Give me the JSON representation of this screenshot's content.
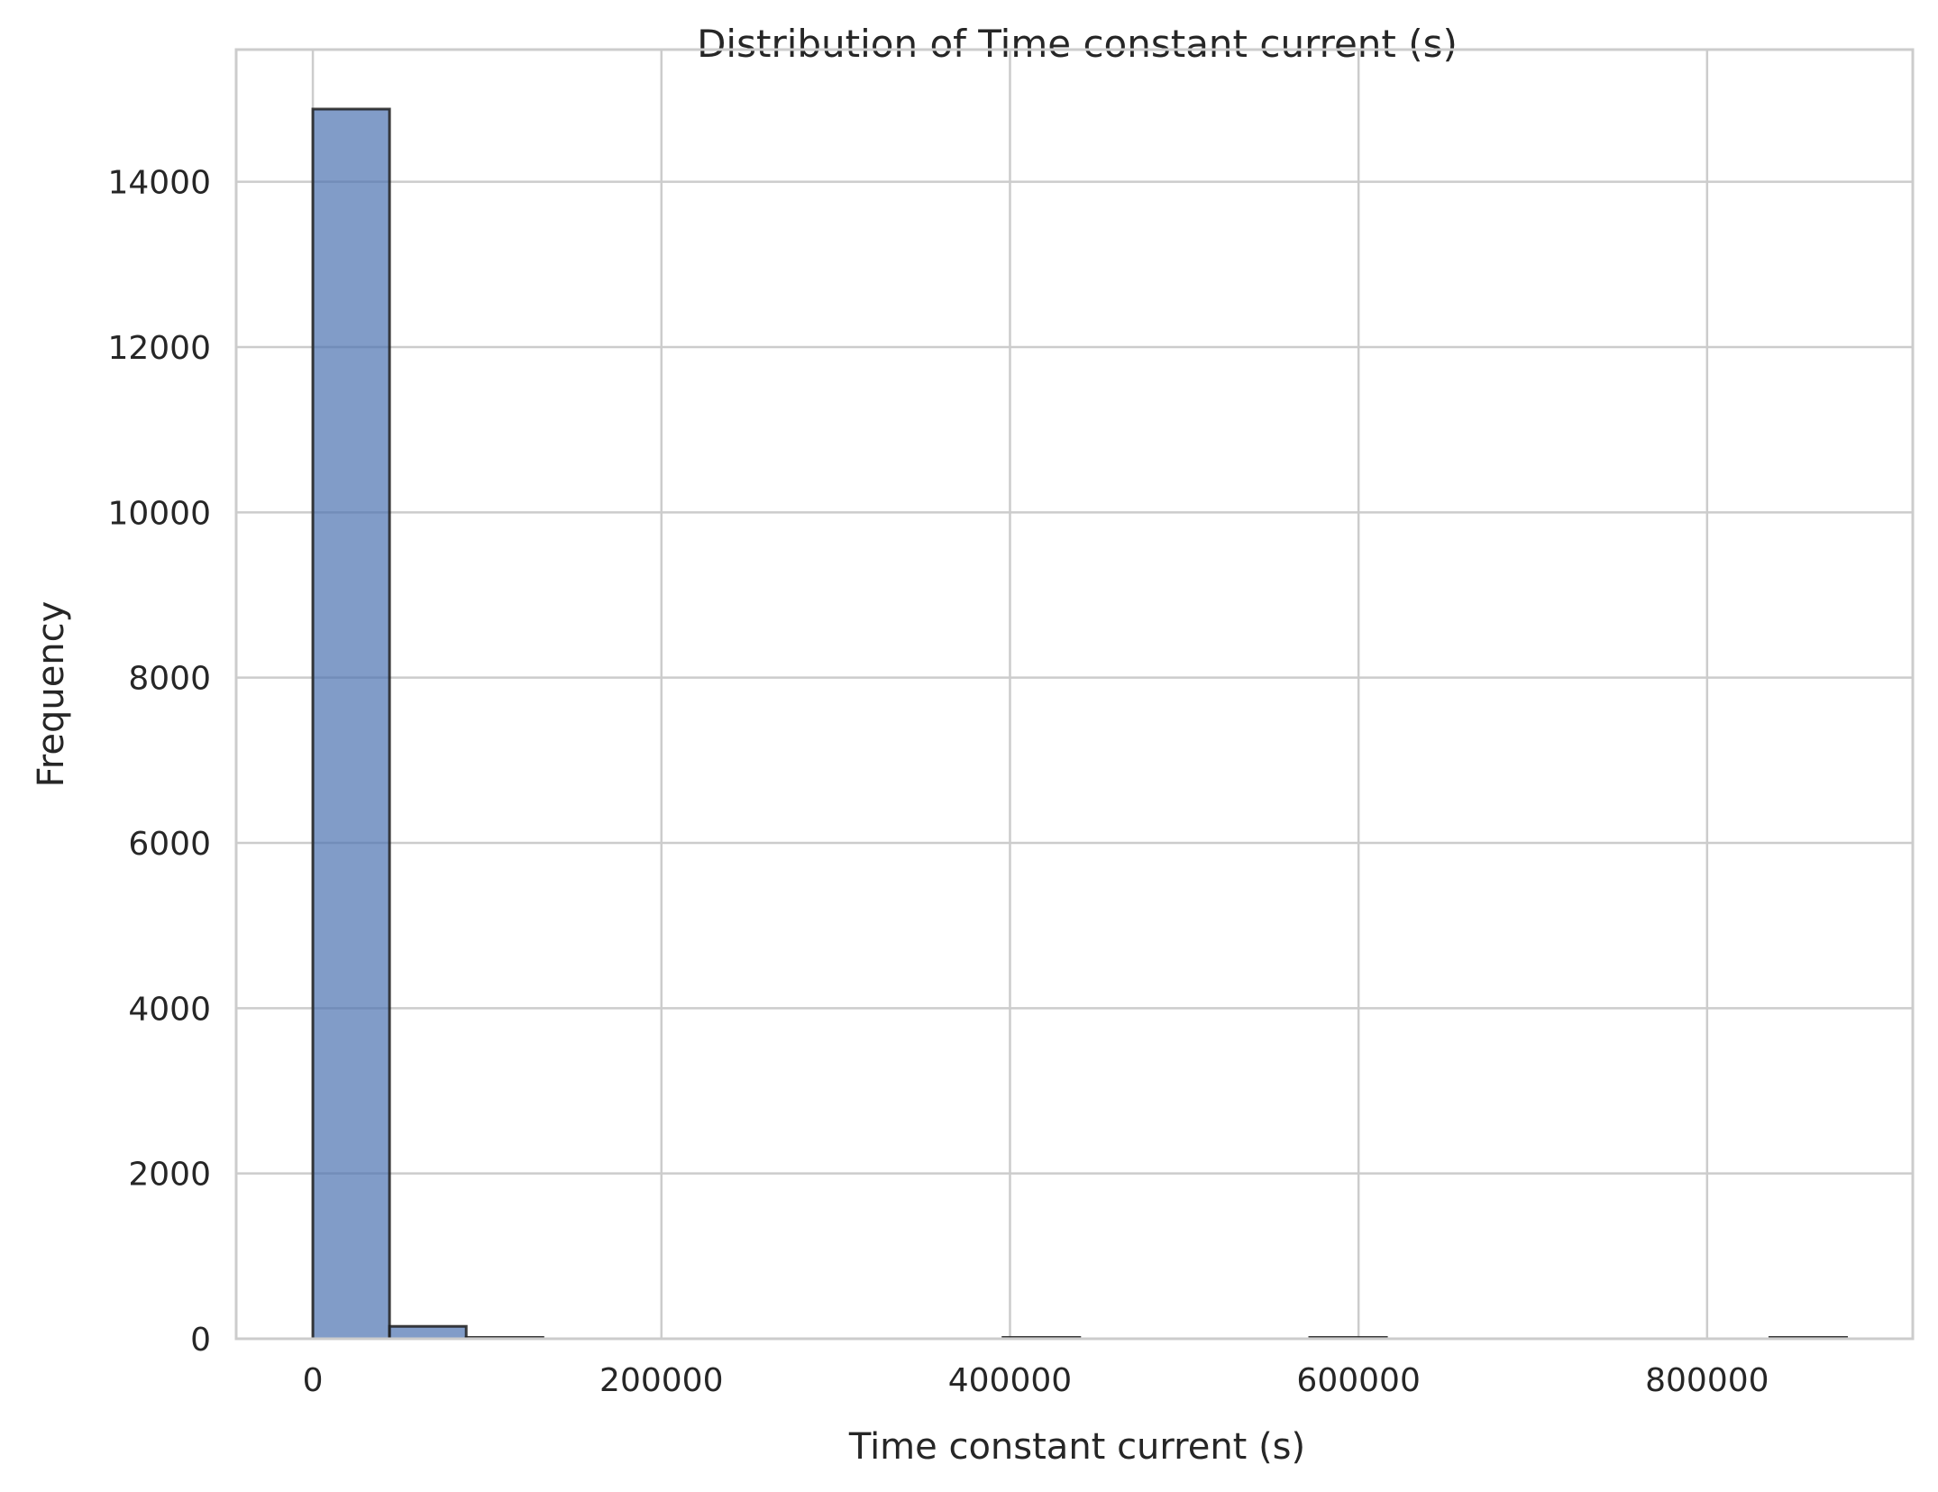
{
  "chart_data": {
    "type": "bar",
    "title": "Distribution of Time constant current (s)",
    "xlabel": "Time constant current (s)",
    "ylabel": "Frequency",
    "xlim": [
      -44000,
      918000
    ],
    "ylim": [
      0,
      15600
    ],
    "xticks": [
      0,
      200000,
      400000,
      600000,
      800000
    ],
    "yticks": [
      0,
      2000,
      4000,
      6000,
      8000,
      10000,
      12000,
      14000
    ],
    "grid": true,
    "bar_color": "#4c72b0",
    "edge_color": "#1f1f1f",
    "bins": [
      {
        "x0": 0,
        "x1": 44000,
        "count": 14880
      },
      {
        "x0": 44000,
        "x1": 88000,
        "count": 150
      },
      {
        "x0": 88000,
        "x1": 132000,
        "count": 8
      },
      {
        "x0": 396000,
        "x1": 440000,
        "count": 3
      },
      {
        "x0": 572000,
        "x1": 616000,
        "count": 2
      },
      {
        "x0": 836000,
        "x1": 880000,
        "count": 3
      }
    ]
  }
}
